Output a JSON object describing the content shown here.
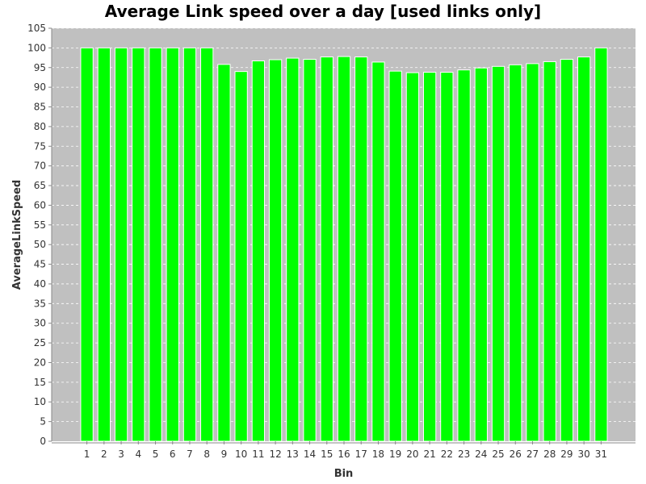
{
  "chart_data": {
    "type": "bar",
    "title": "Average Link speed over a day [used links only]",
    "xlabel": "Bin",
    "ylabel": "AverageLinkSpeed",
    "categories": [
      "1",
      "2",
      "3",
      "4",
      "5",
      "6",
      "7",
      "8",
      "9",
      "10",
      "11",
      "12",
      "13",
      "14",
      "15",
      "16",
      "17",
      "18",
      "19",
      "20",
      "21",
      "22",
      "23",
      "24",
      "25",
      "26",
      "27",
      "28",
      "29",
      "30",
      "31"
    ],
    "series": [
      {
        "values": [
          100,
          100,
          100,
          100,
          100,
          100,
          100,
          100,
          95.8,
          94.0,
          96.7,
          97.0,
          97.4,
          97.1,
          97.7,
          97.8,
          97.7,
          96.4,
          94.1,
          93.7,
          93.8,
          93.8,
          94.4,
          94.9,
          95.3,
          95.7,
          96.0,
          96.5,
          97.1,
          97.7,
          100
        ]
      }
    ],
    "ylim": [
      0,
      105
    ],
    "yticks": [
      0,
      5,
      10,
      15,
      20,
      25,
      30,
      35,
      40,
      45,
      50,
      55,
      60,
      65,
      70,
      75,
      80,
      85,
      90,
      95,
      100,
      105
    ],
    "grid": true,
    "colors": {
      "bar": "#00ff00",
      "plot_background": "#c0c0c0",
      "gridline": "#ffffff",
      "axis": "#888888"
    }
  }
}
